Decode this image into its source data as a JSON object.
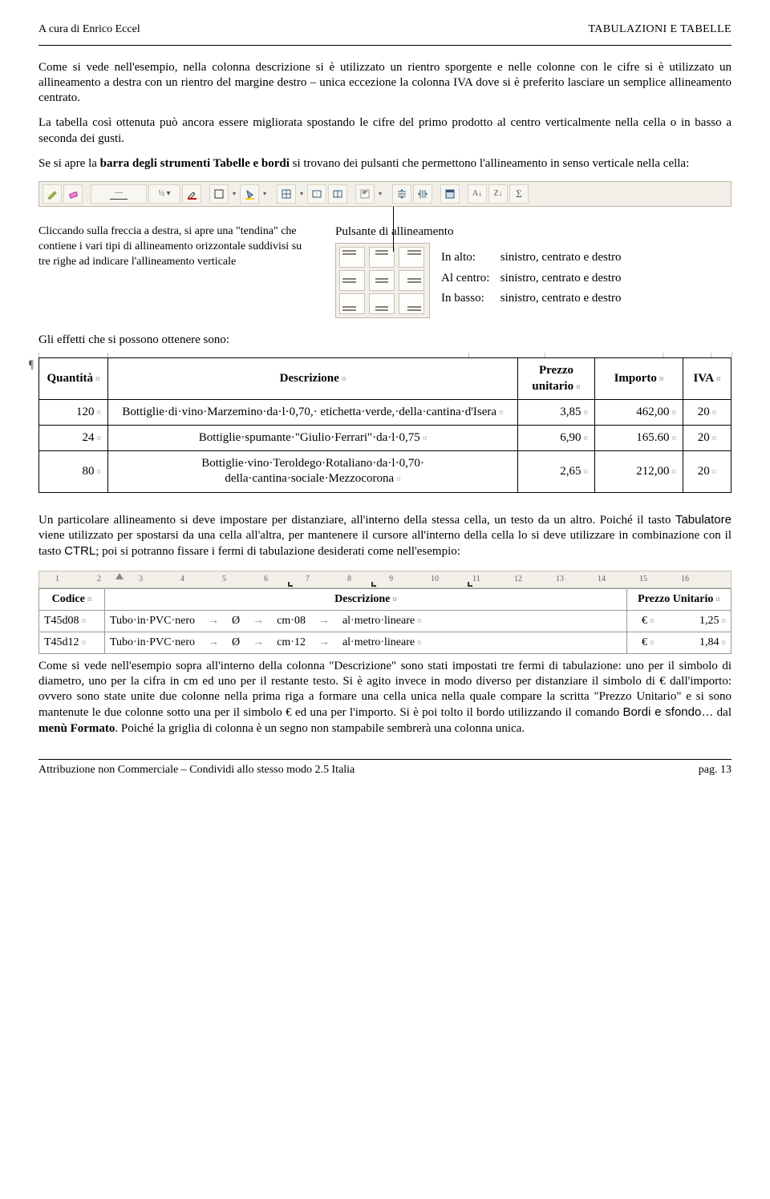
{
  "header": {
    "left": "A cura di Enrico Eccel",
    "right": "TABULAZIONI E TABELLE"
  },
  "para1": "Come si vede nell'esempio, nella colonna descrizione si è utilizzato un rientro sporgente e nelle colonne con le cifre si è utilizzato un allineamento a destra con un rientro del margine destro – unica eccezione la colonna IVA dove si è preferito lasciare un semplice allineamento centrato.",
  "para2": "La tabella così ottenuta può ancora essere migliorata spostando le cifre del primo prodotto al centro verticalmente nella cella o in basso a seconda dei gusti.",
  "para3_a": "Se si apre la ",
  "para3_b": "barra degli strumenti Tabelle e bordi",
  "para3_c": " si trovano dei pulsanti che permettono l'allineamento in senso verticale nella cella:",
  "align_caption": "Pulsante di allineamento",
  "align_left_text": "Cliccando sulla freccia a destra, si apre una \"tendina\" che contiene i vari tipi di allineamento orizzontale suddivisi su tre righe ad indicare l'allineamento verticale",
  "align_rows": [
    {
      "label": "In alto:",
      "text": "sinistro, centrato e destro"
    },
    {
      "label": "Al centro:",
      "text": "sinistro, centrato e destro"
    },
    {
      "label": "In basso:",
      "text": "sinistro, centrato e destro"
    }
  ],
  "effects_line": "Gli effetti che si possono ottenere sono:",
  "table1": {
    "headers": [
      "Quantità",
      "Descrizione",
      "Prezzo unitario",
      "Importo",
      "IVA"
    ],
    "rows": [
      {
        "q": "120",
        "d": "Bottiglie·di·vino·Marzemino·da·l·0,70,· etichetta·verde,·della·cantina·d'Isera",
        "p": "3,85",
        "i": "462,00",
        "v": "20"
      },
      {
        "q": "24",
        "d": "Bottiglie·spumante·\"Giulio·Ferrari\"·da·l·0,75",
        "p": "6,90",
        "i": "165.60",
        "v": "20"
      },
      {
        "q": "80",
        "d": "Bottiglie·vino·Teroldego·Rotaliano·da·l·0,70· della·cantina·sociale·Mezzocorona",
        "p": "2,65",
        "i": "212,00",
        "v": "20"
      }
    ],
    "col_ticks_pct": [
      0,
      10,
      62,
      73,
      90,
      97,
      100
    ]
  },
  "para4_a": "Un particolare allineamento si deve impostare per distanziare, all'interno della stessa cella, un testo da un altro. Poiché il tasto ",
  "para4_b": "Tabulatore",
  "para4_c": " viene utilizzato per spostarsi da una cella all'altra, per mantenere il cursore all'interno della cella lo si deve utilizzare in combinazione con il tasto ",
  "para4_d": "CTRL",
  "para4_e": "; poi si potranno fissare i fermi di tabulazione desiderati come nell'esempio:",
  "ruler": {
    "nums": [
      "1",
      "2",
      "3",
      "4",
      "5",
      "6",
      "7",
      "8",
      "9",
      "10",
      "11",
      "12",
      "13",
      "14",
      "15",
      "16"
    ],
    "tabs_pct": [
      36,
      48,
      62
    ],
    "indent_pct": 11
  },
  "table2": {
    "headers": [
      "Codice",
      "Descrizione",
      "Prezzo  Unitario"
    ],
    "rows": [
      {
        "a": "T45d08",
        "b_parts": [
          "Tubo·in·PVC·nero",
          "Ø",
          "cm·08",
          "al·metro·lineare"
        ],
        "c": "€",
        "d": "1,25"
      },
      {
        "a": "T45d12",
        "b_parts": [
          "Tubo·in·PVC·nero",
          "Ø",
          "cm·12",
          "al·metro·lineare"
        ],
        "c": "€",
        "d": "1,84"
      }
    ]
  },
  "para5_a": "Come si vede nell'esempio sopra all'interno della colonna \"Descrizione\" sono stati impostati tre fermi di tabulazione: uno per il simbolo di diametro, uno per la cifra in cm ed uno per il restante testo. Si è agito invece in modo diverso per distanziare il simbolo di € dall'importo: ovvero sono state unite due colonne nella prima riga a formare una cella unica nella quale compare la scritta \"Prezzo Unitario\" e si sono mantenute le due colonne sotto una per il simbolo € ed una per l'importo. Si è poi tolto il bordo utilizzando il comando ",
  "para5_b": "Bordi e sfondo…",
  "para5_c": " dal ",
  "para5_d": "menù Formato",
  "para5_e": ". Poiché la griglia di colonna è un segno non stampabile sembrerà una colonna unica.",
  "footer": {
    "left": "Attribuzione non Commerciale – Condividi  allo stesso modo 2.5 Italia",
    "right": "pag. 13"
  },
  "toolbar_icons": [
    "pencil-icon",
    "eraser-icon",
    "sep",
    "line-style-dropdown",
    "line-weight-dropdown",
    "border-color-icon",
    "sep",
    "outside-border-icon",
    "dropdown-icon",
    "fill-color-icon",
    "dropdown-icon",
    "sep",
    "insert-table-icon",
    "dropdown-icon",
    "merge-cells-icon",
    "split-cells-icon",
    "sep",
    "align-cell-icon",
    "dropdown-icon",
    "sep",
    "distribute-rows-icon",
    "distribute-cols-icon",
    "sep",
    "table-autoformat-icon",
    "sep",
    "sort-asc-icon",
    "sort-desc-icon",
    "autosum-icon"
  ]
}
